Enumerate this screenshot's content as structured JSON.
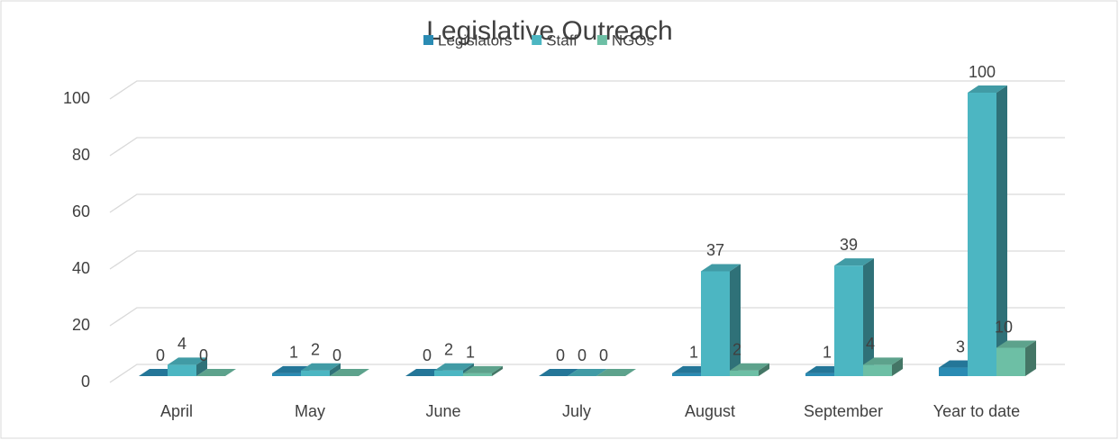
{
  "chart_data": {
    "type": "bar3d",
    "title": "Legislative Outreach",
    "categories": [
      "April",
      "May",
      "June",
      "July",
      "August",
      "September",
      "Year to date"
    ],
    "series": [
      {
        "name": "Legislators",
        "color": "#2a8bb3",
        "values": [
          0,
          1,
          0,
          0,
          1,
          1,
          3
        ]
      },
      {
        "name": "Staff",
        "color": "#4cb6c2",
        "values": [
          4,
          2,
          2,
          0,
          37,
          39,
          100
        ]
      },
      {
        "name": "NGOs",
        "color": "#6dbfa5",
        "values": [
          0,
          0,
          1,
          0,
          2,
          4,
          10
        ]
      }
    ],
    "ylim": [
      0,
      100
    ],
    "yticks": [
      0,
      20,
      40,
      60,
      80,
      100
    ],
    "grid": true
  }
}
